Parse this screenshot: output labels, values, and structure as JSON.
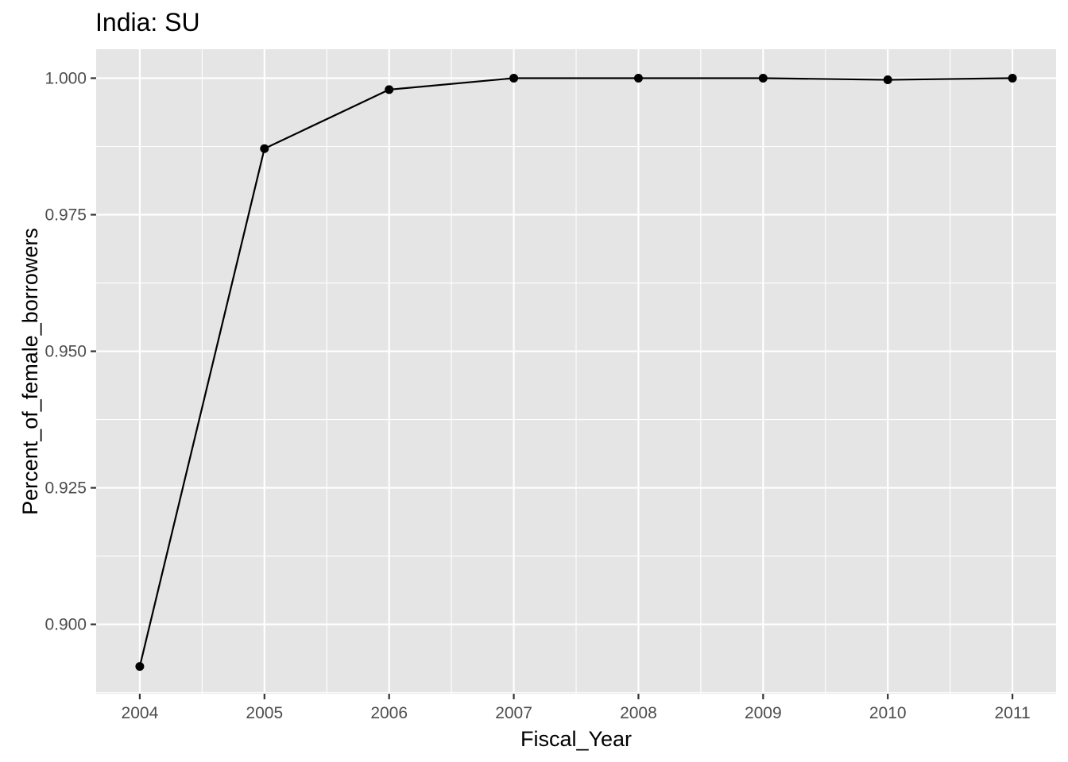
{
  "chart_data": {
    "type": "line",
    "title": "India:  SU",
    "xlabel": "Fiscal_Year",
    "ylabel": "Percent_of_female_borrowers",
    "x": [
      2004,
      2005,
      2006,
      2007,
      2008,
      2009,
      2010,
      2011
    ],
    "series": [
      {
        "values": [
          0.8923,
          0.9871,
          0.9979,
          1.0,
          1.0,
          1.0,
          0.9997,
          1.0
        ]
      }
    ],
    "x_ticks": [
      "2004",
      "2005",
      "2006",
      "2007",
      "2008",
      "2009",
      "2010",
      "2011"
    ],
    "y_ticks": [
      0.9,
      0.925,
      0.95,
      0.975,
      1.0
    ],
    "y_tick_labels": [
      "0.900",
      "0.925",
      "0.950",
      "0.975",
      "1.000"
    ],
    "xlim": [
      2003.65,
      2011.35
    ],
    "ylim": [
      0.8873,
      1.0053
    ],
    "grid": true,
    "legend": "none",
    "colors": {
      "panel": "#e5e5e5",
      "grid_major": "#ffffff",
      "line": "#000000",
      "point": "#000000",
      "tick_label": "#4d4d4d"
    }
  }
}
